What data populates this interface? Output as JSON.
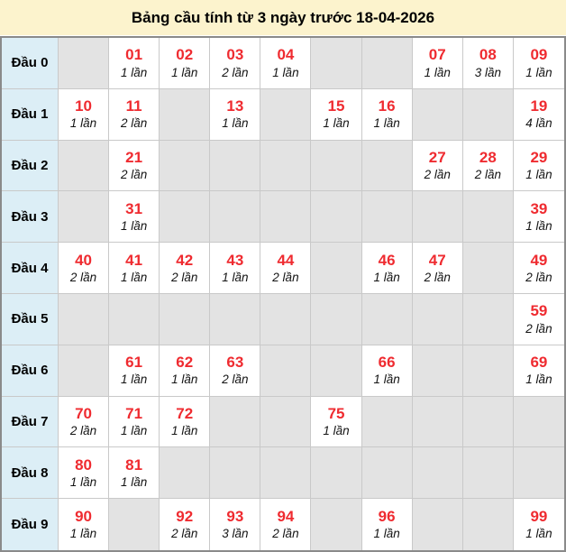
{
  "title": "Bảng cầu tính từ 3 ngày trước 18-04-2026",
  "colors": {
    "title_bg": "#fcf3cd",
    "label_bg": "#dceef6",
    "empty_bg": "#e3e3e3",
    "filled_bg": "#ffffff",
    "number_red": "#ef2b30",
    "outer_border": "#8a8a8a",
    "grid_border": "#c9c9c9"
  },
  "rows": [
    {
      "label": "Đầu 0",
      "cells": [
        null,
        {
          "n": "01",
          "c": "1 lần"
        },
        {
          "n": "02",
          "c": "1 lần"
        },
        {
          "n": "03",
          "c": "2 lần"
        },
        {
          "n": "04",
          "c": "1 lần"
        },
        null,
        null,
        {
          "n": "07",
          "c": "1 lần"
        },
        {
          "n": "08",
          "c": "3 lần"
        },
        {
          "n": "09",
          "c": "1 lần"
        }
      ]
    },
    {
      "label": "Đầu 1",
      "cells": [
        {
          "n": "10",
          "c": "1 lần"
        },
        {
          "n": "11",
          "c": "2 lần"
        },
        null,
        {
          "n": "13",
          "c": "1 lần"
        },
        null,
        {
          "n": "15",
          "c": "1 lần"
        },
        {
          "n": "16",
          "c": "1 lần"
        },
        null,
        null,
        {
          "n": "19",
          "c": "4 lần"
        }
      ]
    },
    {
      "label": "Đầu 2",
      "cells": [
        null,
        {
          "n": "21",
          "c": "2 lần"
        },
        null,
        null,
        null,
        null,
        null,
        {
          "n": "27",
          "c": "2 lần"
        },
        {
          "n": "28",
          "c": "2 lần"
        },
        {
          "n": "29",
          "c": "1 lần"
        }
      ]
    },
    {
      "label": "Đầu 3",
      "cells": [
        null,
        {
          "n": "31",
          "c": "1 lần"
        },
        null,
        null,
        null,
        null,
        null,
        null,
        null,
        {
          "n": "39",
          "c": "1 lần"
        }
      ]
    },
    {
      "label": "Đầu 4",
      "cells": [
        {
          "n": "40",
          "c": "2 lần"
        },
        {
          "n": "41",
          "c": "1 lần"
        },
        {
          "n": "42",
          "c": "2 lần"
        },
        {
          "n": "43",
          "c": "1 lần"
        },
        {
          "n": "44",
          "c": "2 lần"
        },
        null,
        {
          "n": "46",
          "c": "1 lần"
        },
        {
          "n": "47",
          "c": "2 lần"
        },
        null,
        {
          "n": "49",
          "c": "2 lần"
        }
      ]
    },
    {
      "label": "Đầu 5",
      "cells": [
        null,
        null,
        null,
        null,
        null,
        null,
        null,
        null,
        null,
        {
          "n": "59",
          "c": "2 lần"
        }
      ]
    },
    {
      "label": "Đầu 6",
      "cells": [
        null,
        {
          "n": "61",
          "c": "1 lần"
        },
        {
          "n": "62",
          "c": "1 lần"
        },
        {
          "n": "63",
          "c": "2 lần"
        },
        null,
        null,
        {
          "n": "66",
          "c": "1 lần"
        },
        null,
        null,
        {
          "n": "69",
          "c": "1 lần"
        }
      ]
    },
    {
      "label": "Đầu 7",
      "cells": [
        {
          "n": "70",
          "c": "2 lần"
        },
        {
          "n": "71",
          "c": "1 lần"
        },
        {
          "n": "72",
          "c": "1 lần"
        },
        null,
        null,
        {
          "n": "75",
          "c": "1 lần"
        },
        null,
        null,
        null,
        null
      ]
    },
    {
      "label": "Đầu 8",
      "cells": [
        {
          "n": "80",
          "c": "1 lần"
        },
        {
          "n": "81",
          "c": "1 lần"
        },
        null,
        null,
        null,
        null,
        null,
        null,
        null,
        null
      ]
    },
    {
      "label": "Đầu 9",
      "cells": [
        {
          "n": "90",
          "c": "1 lần"
        },
        null,
        {
          "n": "92",
          "c": "2 lần"
        },
        {
          "n": "93",
          "c": "3 lần"
        },
        {
          "n": "94",
          "c": "2 lần"
        },
        null,
        {
          "n": "96",
          "c": "1 lần"
        },
        null,
        null,
        {
          "n": "99",
          "c": "1 lần"
        }
      ]
    }
  ]
}
